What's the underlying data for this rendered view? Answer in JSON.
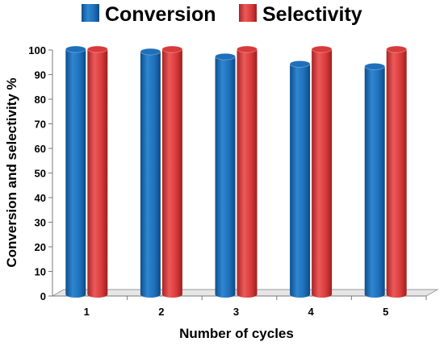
{
  "chart_data": {
    "type": "bar",
    "chart_style": "3d-cylinder",
    "categories": [
      "1",
      "2",
      "3",
      "4",
      "5"
    ],
    "series": [
      {
        "name": "Conversion",
        "color": "#1f6fba",
        "values": [
          99,
          98,
          96,
          93,
          92
        ]
      },
      {
        "name": "Selectivity",
        "color": "#d93a3a",
        "values": [
          99,
          99,
          99,
          99,
          99
        ]
      }
    ],
    "xlabel": "Number of cycles",
    "ylabel": "Conversion and selectivity %",
    "ylim": [
      0,
      100
    ],
    "yticks": [
      0,
      10,
      20,
      30,
      40,
      50,
      60,
      70,
      80,
      90,
      100
    ],
    "grid": false,
    "legend_position": "top"
  }
}
